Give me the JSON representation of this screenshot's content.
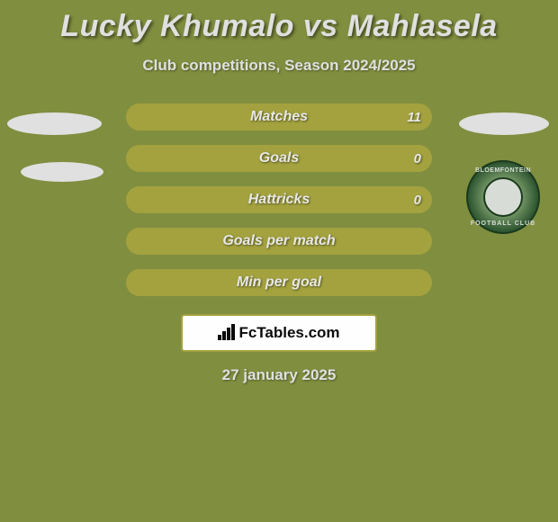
{
  "header": {
    "title": "Lucky Khumalo vs Mahlasela",
    "subtitle": "Club competitions, Season 2024/2025"
  },
  "stats": [
    {
      "label": "Matches",
      "value": "11"
    },
    {
      "label": "Goals",
      "value": "0"
    },
    {
      "label": "Hattricks",
      "value": "0"
    },
    {
      "label": "Goals per match",
      "value": ""
    },
    {
      "label": "Min per goal",
      "value": ""
    }
  ],
  "badge": {
    "text_top": "BLOEMFONTEIN",
    "text_bottom": "FOOTBALL CLUB"
  },
  "logo": {
    "text": "FcTables.com"
  },
  "date": "27 january 2025",
  "colors": {
    "background": "#808e3f",
    "stat_bar": "#a3a23f",
    "text_light": "#dfe0df",
    "text_dark": "#0a0a0a",
    "white": "#fefefe"
  }
}
